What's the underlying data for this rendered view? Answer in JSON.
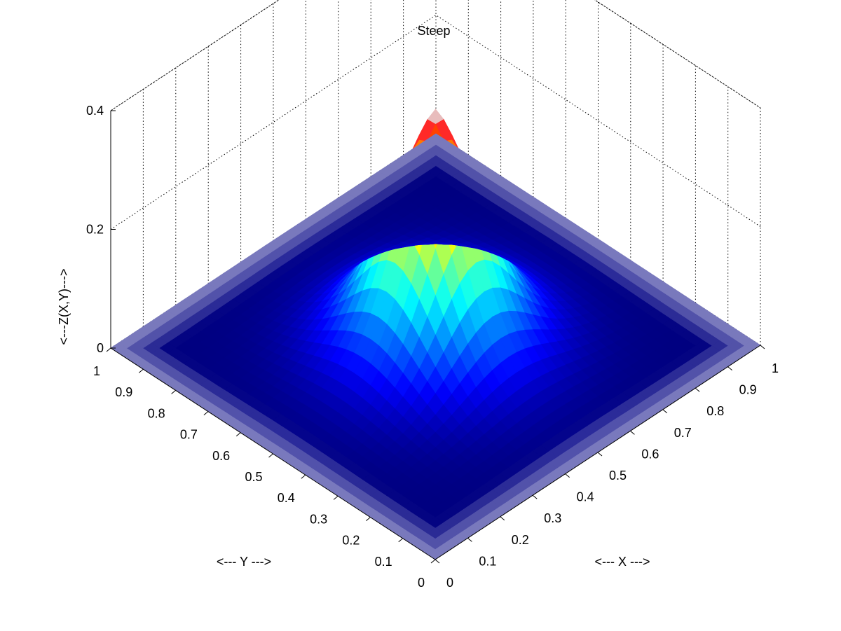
{
  "chart_data": {
    "type": "surface",
    "title": "Steep",
    "xlabel": "<--- X --->",
    "ylabel": "<--- Y --->",
    "zlabel": "<---Z(X,Y)--->",
    "xlim": [
      0,
      1
    ],
    "ylim": [
      0,
      1
    ],
    "zlim": [
      0,
      0.4
    ],
    "x_ticks": [
      "0",
      "0.1",
      "0.2",
      "0.3",
      "0.4",
      "0.5",
      "0.6",
      "0.7",
      "0.8",
      "0.9",
      "1"
    ],
    "y_ticks": [
      "0",
      "0.1",
      "0.2",
      "0.3",
      "0.4",
      "0.5",
      "0.6",
      "0.7",
      "0.8",
      "0.9",
      "1"
    ],
    "z_ticks": [
      "0",
      "0.2",
      "0.4"
    ],
    "grid": true,
    "colormap": "jet",
    "shading": "interp",
    "view": "top-down isometric",
    "surface": {
      "x": [
        0,
        0.1,
        0.2,
        0.3,
        0.4,
        0.5,
        0.6,
        0.7,
        0.8,
        0.9,
        1
      ],
      "y": [
        0,
        0.1,
        0.2,
        0.3,
        0.4,
        0.5,
        0.6,
        0.7,
        0.8,
        0.9,
        1
      ],
      "z_peak": 0.4,
      "peak_at": [
        0.5,
        0.5
      ]
    },
    "colors": {
      "low_edge": "#8c8cff",
      "low_center": "#0000a0",
      "peak": "#ffffff"
    }
  }
}
